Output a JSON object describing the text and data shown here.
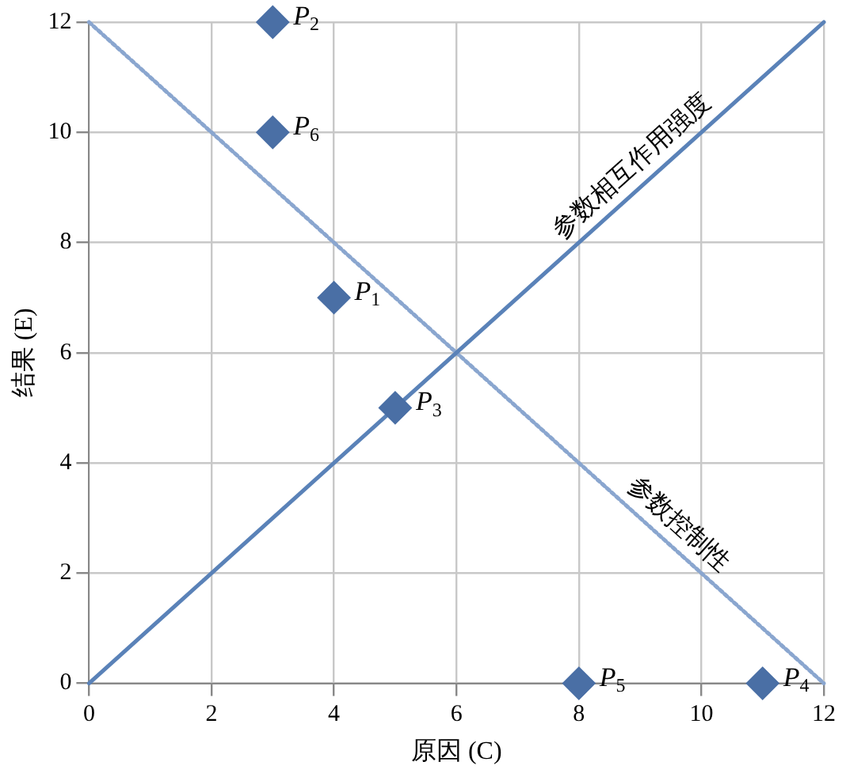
{
  "chart_data": {
    "type": "scatter",
    "xlabel": "原因 (C)",
    "ylabel": "结果 (E)",
    "xlim": [
      0,
      12
    ],
    "ylim": [
      0,
      12
    ],
    "xticks": [
      0,
      2,
      4,
      6,
      8,
      10,
      12
    ],
    "yticks": [
      0,
      2,
      4,
      6,
      8,
      10,
      12
    ],
    "grid": true,
    "legend": false,
    "series": [
      {
        "type": "line",
        "x": [
          0,
          12
        ],
        "values": [
          0,
          12
        ],
        "color": "#5a82b8",
        "line_style": "solid",
        "marker": "none"
      },
      {
        "type": "line",
        "x": [
          0,
          12
        ],
        "values": [
          12,
          0
        ],
        "color": "#8aa6cf",
        "line_style": "dotted",
        "marker": "none"
      },
      {
        "type": "scatter",
        "x": [
          4,
          3,
          5,
          11,
          8,
          3
        ],
        "values": [
          7,
          12,
          5,
          0,
          0,
          10
        ],
        "color": "#4a6fa5",
        "marker": "diamond"
      }
    ],
    "annotations": [
      {
        "text": "P$_{1}$",
        "x": 4,
        "y": 7
      },
      {
        "text": "P$_{2}$",
        "x": 3,
        "y": 12
      },
      {
        "text": "P$_{3}$",
        "x": 5,
        "y": 5
      },
      {
        "text": "P$_{4}$",
        "x": 11,
        "y": 0
      },
      {
        "text": "P$_{5}$",
        "x": 8,
        "y": 0
      },
      {
        "text": "P$_{6}$",
        "x": 3,
        "y": 10
      },
      {
        "text": "参数相互作用强度",
        "x": 9.1,
        "y": 9.1
      },
      {
        "text": "参数控制性",
        "x": 9.4,
        "y": 2.6
      }
    ]
  }
}
